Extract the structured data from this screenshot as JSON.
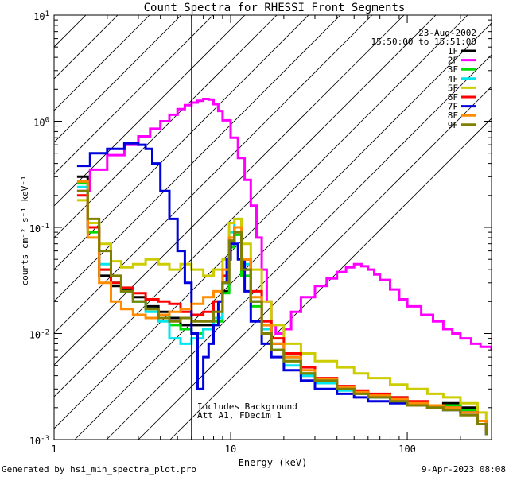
{
  "chart_data": {
    "type": "line",
    "title": "Count Spectra for RHESSI Front Segments",
    "xlabel": "Energy (keV)",
    "ylabel": "counts cm⁻² s⁻¹ keV⁻¹",
    "xscale": "log",
    "yscale": "log",
    "xlim": [
      1,
      300
    ],
    "ylim": [
      0.001,
      10
    ],
    "xticks": [
      {
        "v": 1,
        "label": "1"
      },
      {
        "v": 10,
        "label": "10"
      },
      {
        "v": 100,
        "label": "100"
      }
    ],
    "yticks": [
      {
        "v": 0.001,
        "base": "10",
        "exp": "-3"
      },
      {
        "v": 0.01,
        "base": "10",
        "exp": "-2"
      },
      {
        "v": 0.1,
        "base": "10",
        "exp": "-1"
      },
      {
        "v": 1,
        "base": "10",
        "exp": "0"
      },
      {
        "v": 10,
        "base": "10",
        "exp": "1"
      }
    ],
    "date": "23-Aug-2002",
    "time_range": "15:50:00 to 15:51:00",
    "shaded_region": {
      "x_start": 1,
      "x_end": 6
    },
    "annotations": [
      "Includes Background",
      "Att A1, FDecim 1"
    ],
    "footer_left": "Generated by hsi_min_spectra_plot.pro",
    "footer_right": "9-Apr-2023 08:08",
    "series": [
      {
        "name": "1F",
        "color": "#000000",
        "x": [
          1.35,
          1.55,
          1.8,
          2.1,
          2.4,
          2.8,
          3.3,
          3.9,
          4.5,
          5.2,
          6.0,
          7.0,
          8.0,
          9.0,
          9.8,
          10.5,
          11.5,
          13,
          15,
          17,
          20,
          25,
          30,
          40,
          50,
          60,
          80,
          100,
          130,
          160,
          200,
          250,
          280
        ],
        "y": [
          0.3,
          0.1,
          0.035,
          0.028,
          0.026,
          0.022,
          0.018,
          0.016,
          0.014,
          0.012,
          0.012,
          0.012,
          0.014,
          0.025,
          0.07,
          0.09,
          0.04,
          0.02,
          0.012,
          0.008,
          0.006,
          0.004,
          0.0035,
          0.003,
          0.0028,
          0.0025,
          0.0025,
          0.0022,
          0.002,
          0.0022,
          0.002,
          0.0015,
          0.0012
        ]
      },
      {
        "name": "2F",
        "color": "#ff00ff",
        "x": [
          1.35,
          1.6,
          2.0,
          2.5,
          3.0,
          3.5,
          4.0,
          4.5,
          5.0,
          5.5,
          6.0,
          6.5,
          7.0,
          7.5,
          8.0,
          8.5,
          9.0,
          10,
          11,
          12,
          13,
          14,
          15,
          16,
          17,
          18,
          20,
          22,
          25,
          30,
          35,
          40,
          45,
          50,
          55,
          60,
          65,
          70,
          80,
          90,
          100,
          120,
          140,
          160,
          180,
          200,
          230,
          260,
          300
        ],
        "y": [
          0.22,
          0.35,
          0.48,
          0.6,
          0.72,
          0.85,
          1.0,
          1.15,
          1.3,
          1.42,
          1.5,
          1.56,
          1.62,
          1.6,
          1.45,
          1.25,
          1.02,
          0.7,
          0.45,
          0.28,
          0.16,
          0.08,
          0.04,
          0.02,
          0.012,
          0.01,
          0.011,
          0.016,
          0.022,
          0.028,
          0.033,
          0.038,
          0.042,
          0.045,
          0.043,
          0.04,
          0.036,
          0.032,
          0.026,
          0.021,
          0.018,
          0.015,
          0.013,
          0.011,
          0.01,
          0.009,
          0.008,
          0.0075,
          0.007
        ]
      },
      {
        "name": "3F",
        "color": "#00dd00",
        "x": [
          1.35,
          1.55,
          1.8,
          2.1,
          2.4,
          2.8,
          3.3,
          3.9,
          4.5,
          5.2,
          6.0,
          7.0,
          8.0,
          9.0,
          9.8,
          10.5,
          11.5,
          13,
          15,
          17,
          20,
          25,
          30,
          40,
          50,
          60,
          80,
          100,
          130,
          160,
          200,
          250,
          280
        ],
        "y": [
          0.26,
          0.09,
          0.04,
          0.03,
          0.025,
          0.02,
          0.017,
          0.015,
          0.012,
          0.011,
          0.01,
          0.011,
          0.013,
          0.024,
          0.065,
          0.085,
          0.035,
          0.018,
          0.01,
          0.007,
          0.0055,
          0.0042,
          0.0035,
          0.003,
          0.0028,
          0.0026,
          0.0024,
          0.0022,
          0.002,
          0.0021,
          0.0019,
          0.0015,
          0.0012
        ]
      },
      {
        "name": "4F",
        "color": "#00e5ee",
        "x": [
          1.35,
          1.55,
          1.8,
          2.1,
          2.4,
          2.8,
          3.3,
          3.9,
          4.5,
          5.2,
          6.0,
          7.0,
          8.0,
          9.0,
          9.8,
          10.5,
          11.5,
          13,
          15,
          17,
          20,
          25,
          30,
          40,
          50,
          60,
          80,
          100,
          130,
          160,
          200,
          250,
          280
        ],
        "y": [
          0.24,
          0.1,
          0.045,
          0.03,
          0.025,
          0.02,
          0.016,
          0.013,
          0.009,
          0.008,
          0.009,
          0.011,
          0.014,
          0.03,
          0.09,
          0.12,
          0.045,
          0.02,
          0.011,
          0.007,
          0.005,
          0.004,
          0.0034,
          0.0029,
          0.0027,
          0.0025,
          0.0023,
          0.0021,
          0.002,
          0.002,
          0.0018,
          0.0014,
          0.0011
        ]
      },
      {
        "name": "5F",
        "color": "#cccc00",
        "x": [
          1.35,
          1.55,
          1.8,
          2.1,
          2.4,
          2.8,
          3.3,
          3.9,
          4.5,
          5.2,
          6.0,
          7.0,
          8.0,
          9.0,
          9.8,
          10.5,
          11.5,
          13,
          15,
          17,
          20,
          25,
          30,
          40,
          50,
          60,
          80,
          100,
          130,
          160,
          200,
          250,
          280
        ],
        "y": [
          0.18,
          0.11,
          0.07,
          0.048,
          0.042,
          0.045,
          0.05,
          0.045,
          0.04,
          0.045,
          0.04,
          0.035,
          0.04,
          0.05,
          0.11,
          0.12,
          0.07,
          0.04,
          0.02,
          0.012,
          0.008,
          0.0065,
          0.0055,
          0.0048,
          0.0042,
          0.0038,
          0.0033,
          0.003,
          0.0027,
          0.0025,
          0.0022,
          0.0018,
          0.0014
        ]
      },
      {
        "name": "6F",
        "color": "#ff0000",
        "x": [
          1.35,
          1.55,
          1.8,
          2.1,
          2.4,
          2.8,
          3.3,
          3.9,
          4.5,
          5.2,
          6.0,
          7.0,
          8.0,
          9.0,
          9.8,
          10.5,
          11.5,
          13,
          15,
          17,
          20,
          25,
          30,
          40,
          50,
          60,
          80,
          100,
          130,
          160,
          200,
          250,
          280
        ],
        "y": [
          0.2,
          0.1,
          0.04,
          0.03,
          0.027,
          0.024,
          0.021,
          0.02,
          0.019,
          0.016,
          0.015,
          0.016,
          0.02,
          0.035,
          0.075,
          0.1,
          0.05,
          0.025,
          0.013,
          0.009,
          0.0065,
          0.0048,
          0.0038,
          0.0032,
          0.0029,
          0.0027,
          0.0025,
          0.0023,
          0.0021,
          0.002,
          0.0018,
          0.0015,
          0.0012
        ]
      },
      {
        "name": "7F",
        "color": "#0000dd",
        "x": [
          1.35,
          1.6,
          2.0,
          2.5,
          3.0,
          3.3,
          3.6,
          4.0,
          4.5,
          5.0,
          5.5,
          6.0,
          6.5,
          7.0,
          7.5,
          8.0,
          8.5,
          9.0,
          9.5,
          10,
          11,
          12,
          13,
          15,
          17,
          20,
          25,
          30,
          40,
          50,
          60,
          80,
          100,
          130,
          160,
          200,
          250,
          280
        ],
        "y": [
          0.38,
          0.5,
          0.55,
          0.62,
          0.6,
          0.55,
          0.4,
          0.22,
          0.12,
          0.06,
          0.03,
          0.01,
          0.003,
          0.006,
          0.008,
          0.012,
          0.02,
          0.03,
          0.05,
          0.07,
          0.05,
          0.025,
          0.013,
          0.008,
          0.006,
          0.0045,
          0.0036,
          0.003,
          0.0027,
          0.0025,
          0.0023,
          0.0022,
          0.0021,
          0.002,
          0.0019,
          0.0018,
          0.0014,
          0.0011
        ]
      },
      {
        "name": "8F",
        "color": "#ff8c00",
        "x": [
          1.35,
          1.55,
          1.8,
          2.1,
          2.4,
          2.8,
          3.3,
          3.9,
          4.5,
          5.2,
          6.0,
          7.0,
          8.0,
          9.0,
          9.8,
          10.5,
          11.5,
          13,
          15,
          17,
          20,
          25,
          30,
          40,
          50,
          60,
          80,
          100,
          130,
          160,
          200,
          250,
          280
        ],
        "y": [
          0.27,
          0.08,
          0.03,
          0.02,
          0.017,
          0.015,
          0.014,
          0.015,
          0.016,
          0.017,
          0.019,
          0.022,
          0.025,
          0.04,
          0.08,
          0.1,
          0.05,
          0.022,
          0.012,
          0.008,
          0.006,
          0.0045,
          0.0037,
          0.0031,
          0.0028,
          0.0026,
          0.0024,
          0.0022,
          0.0021,
          0.002,
          0.0018,
          0.0015,
          0.0012
        ]
      },
      {
        "name": "9F",
        "color": "#808000",
        "x": [
          1.35,
          1.55,
          1.8,
          2.1,
          2.4,
          2.8,
          3.3,
          3.9,
          4.5,
          5.2,
          6.0,
          7.0,
          8.0,
          9.0,
          9.8,
          10.5,
          11.5,
          13,
          15,
          17,
          20,
          25,
          30,
          40,
          50,
          60,
          80,
          100,
          130,
          160,
          200,
          250,
          280
        ],
        "y": [
          0.22,
          0.12,
          0.06,
          0.035,
          0.025,
          0.02,
          0.017,
          0.014,
          0.013,
          0.014,
          0.013,
          0.013,
          0.016,
          0.03,
          0.075,
          0.09,
          0.04,
          0.02,
          0.01,
          0.007,
          0.0055,
          0.0042,
          0.0036,
          0.003,
          0.0027,
          0.0025,
          0.0023,
          0.0021,
          0.002,
          0.0019,
          0.0017,
          0.0014,
          0.0011
        ]
      }
    ]
  }
}
